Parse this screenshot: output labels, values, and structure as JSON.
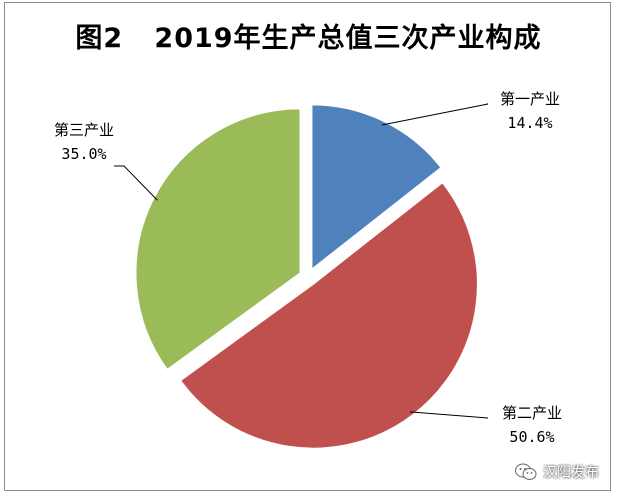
{
  "chart_data": {
    "type": "pie",
    "title": "图2   2019年生产总值三次产业构成",
    "categories": [
      "第一产业",
      "第二产业",
      "第三产业"
    ],
    "values": [
      14.4,
      50.6,
      35.0
    ],
    "value_labels": [
      "14.4%",
      "50.6%",
      "35.0%"
    ],
    "colors": [
      "#4f81bd",
      "#c0504d",
      "#9bbb59"
    ],
    "legend": "none"
  },
  "watermark": {
    "text": "汉阳发布",
    "icon": "wechat-icon"
  }
}
